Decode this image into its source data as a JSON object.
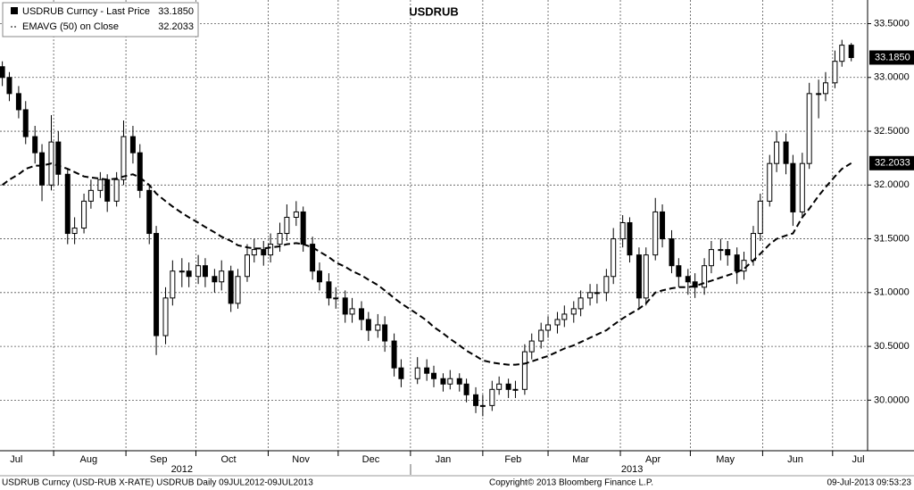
{
  "chart_data": {
    "type": "candlestick",
    "title": "USDRUB",
    "x": [
      "2012-07-10",
      "2012-07-13",
      "2012-07-17",
      "2012-07-20",
      "2012-07-24",
      "2012-07-27",
      "2012-07-31",
      "2012-08-03",
      "2012-08-07",
      "2012-08-10",
      "2012-08-14",
      "2012-08-17",
      "2012-08-21",
      "2012-08-24",
      "2012-08-28",
      "2012-08-31",
      "2012-09-04",
      "2012-09-07",
      "2012-09-11",
      "2012-09-14",
      "2012-09-18",
      "2012-09-21",
      "2012-09-25",
      "2012-09-28",
      "2012-10-02",
      "2012-10-05",
      "2012-10-09",
      "2012-10-12",
      "2012-10-16",
      "2012-10-19",
      "2012-10-23",
      "2012-10-26",
      "2012-10-30",
      "2012-11-02",
      "2012-11-06",
      "2012-11-09",
      "2012-11-13",
      "2012-11-16",
      "2012-11-20",
      "2012-11-23",
      "2012-11-27",
      "2012-11-30",
      "2012-12-04",
      "2012-12-07",
      "2012-12-11",
      "2012-12-14",
      "2012-12-18",
      "2012-12-21",
      "2012-12-25",
      "2012-12-28",
      "2013-01-04",
      "2013-01-08",
      "2013-01-11",
      "2013-01-15",
      "2013-01-18",
      "2013-01-22",
      "2013-01-25",
      "2013-01-29",
      "2013-02-01",
      "2013-02-05",
      "2013-02-08",
      "2013-02-12",
      "2013-02-15",
      "2013-02-19",
      "2013-02-22",
      "2013-02-26",
      "2013-03-01",
      "2013-03-05",
      "2013-03-08",
      "2013-03-12",
      "2013-03-15",
      "2013-03-19",
      "2013-03-22",
      "2013-03-26",
      "2013-03-29",
      "2013-04-02",
      "2013-04-05",
      "2013-04-09",
      "2013-04-12",
      "2013-04-16",
      "2013-04-19",
      "2013-04-23",
      "2013-04-26",
      "2013-04-30",
      "2013-05-03",
      "2013-05-07",
      "2013-05-10",
      "2013-05-14",
      "2013-05-17",
      "2013-05-21",
      "2013-05-24",
      "2013-05-28",
      "2013-05-31",
      "2013-06-04",
      "2013-06-07",
      "2013-06-11",
      "2013-06-14",
      "2013-06-18",
      "2013-06-21",
      "2013-06-25",
      "2013-06-28",
      "2013-07-02",
      "2013-07-05",
      "2013-07-09"
    ],
    "xlim": [
      "2012-07-09",
      "2013-07-16"
    ],
    "xticks": [
      "2012-08-01",
      "2012-09-01",
      "2012-10-01",
      "2012-11-01",
      "2012-12-01",
      "2013-01-01",
      "2013-02-01",
      "2013-03-01",
      "2013-04-01",
      "2013-05-01",
      "2013-06-01",
      "2013-07-01"
    ],
    "month_labels": [
      {
        "value": "2012-07-16",
        "label": "Jul"
      },
      {
        "value": "2012-08-16",
        "label": "Aug"
      },
      {
        "value": "2012-09-15",
        "label": "Sep"
      },
      {
        "value": "2012-10-15",
        "label": "Oct"
      },
      {
        "value": "2012-11-15",
        "label": "Nov"
      },
      {
        "value": "2012-12-15",
        "label": "Dec"
      },
      {
        "value": "2013-01-15",
        "label": "Jan"
      },
      {
        "value": "2013-02-14",
        "label": "Feb"
      },
      {
        "value": "2013-03-15",
        "label": "Mar"
      },
      {
        "value": "2013-04-15",
        "label": "Apr"
      },
      {
        "value": "2013-05-16",
        "label": "May"
      },
      {
        "value": "2013-06-15",
        "label": "Jun"
      },
      {
        "value": "2013-07-12",
        "label": "Jul"
      }
    ],
    "year_labels": [
      {
        "value": "2012-09-25",
        "label": "2012"
      },
      {
        "value": "2013-04-06",
        "label": "2013"
      }
    ],
    "ylim": [
      29.53,
      33.72
    ],
    "yticks": [
      {
        "value": 30,
        "label": "30.0000"
      },
      {
        "value": 30.5,
        "label": "30.5000"
      },
      {
        "value": 31,
        "label": "31.0000"
      },
      {
        "value": 31.5,
        "label": "31.5000"
      },
      {
        "value": 32,
        "label": "32.0000"
      },
      {
        "value": 32.5,
        "label": "32.5000"
      },
      {
        "value": 33,
        "label": "33.0000"
      },
      {
        "value": 33.5,
        "label": "33.5000"
      }
    ],
    "grid": true,
    "series": [
      {
        "name": "USDRUB Curncy - Last Price",
        "type": "candlestick",
        "color": "#000000",
        "last_label": "33.1850",
        "open": [
          33.1,
          33.0,
          32.85,
          32.7,
          32.45,
          32.3,
          32.0,
          32.4,
          32.1,
          31.55,
          31.6,
          31.85,
          31.95,
          32.05,
          31.85,
          32.05,
          32.45,
          32.3,
          31.95,
          31.55,
          30.6,
          30.95,
          31.2,
          31.2,
          31.15,
          31.25,
          31.15,
          31.1,
          31.2,
          30.9,
          31.15,
          31.35,
          31.4,
          31.35,
          31.45,
          31.55,
          31.7,
          31.75,
          31.45,
          31.2,
          31.1,
          30.95,
          30.95,
          30.8,
          30.85,
          30.75,
          30.65,
          30.7,
          30.55,
          30.3,
          30.2,
          30.3,
          30.25,
          30.2,
          30.15,
          30.2,
          30.15,
          30.05,
          29.95,
          29.95,
          30.1,
          30.15,
          30.1,
          30.1,
          30.45,
          30.55,
          30.65,
          30.7,
          30.75,
          30.8,
          30.85,
          30.95,
          31.0,
          31.0,
          31.15,
          31.5,
          31.65,
          31.35,
          30.95,
          31.35,
          31.75,
          31.5,
          31.25,
          31.15,
          31.1,
          31.05,
          31.25,
          31.4,
          31.4,
          31.35,
          31.2,
          31.3,
          31.55,
          31.85,
          32.2,
          32.4,
          32.2,
          31.75,
          32.2,
          32.85,
          32.85,
          32.95,
          33.15,
          33.3
        ],
        "high": [
          33.15,
          33.05,
          32.92,
          32.78,
          32.55,
          32.38,
          32.65,
          32.5,
          32.15,
          31.7,
          31.92,
          32.05,
          32.12,
          32.1,
          32.12,
          32.6,
          32.55,
          32.38,
          32.0,
          31.62,
          31.05,
          31.3,
          31.32,
          31.28,
          31.35,
          31.32,
          31.22,
          31.3,
          31.25,
          31.22,
          31.45,
          31.5,
          31.48,
          31.55,
          31.65,
          31.82,
          31.85,
          31.8,
          31.52,
          31.28,
          31.18,
          31.05,
          31.02,
          30.95,
          30.92,
          30.82,
          30.8,
          30.78,
          30.62,
          30.38,
          30.4,
          30.38,
          30.32,
          30.25,
          30.28,
          30.25,
          30.2,
          30.12,
          30.05,
          30.18,
          30.22,
          30.2,
          30.18,
          30.52,
          30.62,
          30.72,
          30.78,
          30.82,
          30.88,
          30.92,
          31.02,
          31.08,
          31.08,
          31.22,
          31.6,
          31.72,
          31.7,
          31.42,
          31.42,
          31.88,
          31.82,
          31.58,
          31.32,
          31.22,
          31.18,
          31.32,
          31.48,
          31.5,
          31.48,
          31.42,
          31.38,
          31.62,
          31.92,
          32.28,
          32.5,
          32.48,
          32.28,
          32.3,
          32.95,
          32.98,
          33.05,
          33.25,
          33.35,
          33.32
        ],
        "low": [
          32.92,
          32.78,
          32.62,
          32.38,
          32.2,
          31.85,
          31.95,
          32.0,
          31.45,
          31.45,
          31.55,
          31.78,
          31.88,
          31.75,
          31.8,
          32.0,
          32.2,
          31.88,
          31.45,
          30.42,
          30.52,
          30.88,
          31.05,
          31.05,
          31.08,
          31.05,
          31.0,
          31.02,
          30.82,
          30.85,
          31.1,
          31.28,
          31.25,
          31.28,
          31.38,
          31.48,
          31.62,
          31.38,
          31.12,
          31.02,
          30.88,
          30.85,
          30.72,
          30.72,
          30.65,
          30.55,
          30.58,
          30.45,
          30.22,
          30.12,
          30.15,
          30.18,
          30.12,
          30.08,
          30.1,
          30.08,
          29.98,
          29.88,
          29.85,
          29.9,
          30.05,
          30.02,
          30.02,
          30.05,
          30.38,
          30.48,
          30.58,
          30.62,
          30.68,
          30.72,
          30.78,
          30.88,
          30.9,
          30.92,
          31.08,
          31.42,
          31.28,
          30.85,
          30.88,
          31.3,
          31.42,
          31.18,
          31.05,
          30.98,
          30.95,
          30.98,
          31.18,
          31.3,
          31.25,
          31.08,
          31.12,
          31.25,
          31.48,
          31.8,
          32.12,
          32.1,
          31.62,
          31.7,
          32.15,
          32.62,
          32.78,
          32.9,
          33.1,
          33.15
        ],
        "close": [
          33.0,
          32.85,
          32.7,
          32.45,
          32.3,
          32.0,
          32.4,
          32.1,
          31.55,
          31.6,
          31.85,
          31.95,
          32.05,
          31.85,
          32.05,
          32.45,
          32.3,
          31.95,
          31.55,
          30.6,
          30.95,
          31.2,
          31.2,
          31.15,
          31.25,
          31.15,
          31.1,
          31.2,
          30.9,
          31.15,
          31.35,
          31.4,
          31.35,
          31.45,
          31.55,
          31.7,
          31.75,
          31.45,
          31.2,
          31.1,
          30.95,
          30.95,
          30.8,
          30.85,
          30.75,
          30.65,
          30.7,
          30.55,
          30.3,
          30.2,
          30.3,
          30.25,
          30.2,
          30.15,
          30.2,
          30.15,
          30.05,
          29.95,
          29.95,
          30.1,
          30.15,
          30.1,
          30.1,
          30.45,
          30.55,
          30.65,
          30.7,
          30.75,
          30.8,
          30.85,
          30.95,
          31.0,
          31.0,
          31.15,
          31.5,
          31.65,
          31.35,
          30.95,
          31.35,
          31.75,
          31.5,
          31.25,
          31.15,
          31.1,
          31.05,
          31.25,
          31.4,
          31.4,
          31.35,
          31.2,
          31.3,
          31.55,
          31.85,
          32.2,
          32.4,
          32.2,
          31.75,
          32.2,
          32.85,
          32.85,
          32.95,
          33.15,
          33.3,
          33.185
        ]
      },
      {
        "name": "EMAVG (50) on Close",
        "type": "line",
        "color": "#000000",
        "dash": true,
        "last_label": "32.2033",
        "values": [
          32.0,
          32.05,
          32.1,
          32.15,
          32.18,
          32.18,
          32.2,
          32.18,
          32.15,
          32.12,
          32.08,
          32.07,
          32.06,
          32.05,
          32.06,
          32.08,
          32.1,
          32.07,
          32.0,
          31.92,
          31.85,
          31.8,
          31.74,
          31.7,
          31.65,
          31.61,
          31.56,
          31.52,
          31.48,
          31.44,
          31.42,
          31.41,
          31.41,
          31.42,
          31.43,
          31.45,
          31.46,
          31.45,
          31.42,
          31.38,
          31.33,
          31.28,
          31.24,
          31.2,
          31.16,
          31.12,
          31.07,
          31.02,
          30.95,
          30.9,
          30.8,
          30.74,
          30.68,
          30.62,
          30.57,
          30.51,
          30.46,
          30.41,
          30.37,
          30.35,
          30.34,
          30.33,
          30.33,
          30.34,
          30.36,
          30.39,
          30.41,
          30.45,
          30.48,
          30.51,
          30.54,
          30.58,
          30.61,
          30.65,
          30.7,
          30.76,
          30.8,
          30.85,
          30.9,
          31.0,
          31.02,
          31.04,
          31.05,
          31.05,
          31.06,
          31.09,
          31.11,
          31.14,
          31.16,
          31.19,
          31.22,
          31.3,
          31.36,
          31.45,
          31.5,
          31.53,
          31.55,
          31.7,
          31.78,
          31.9,
          31.98,
          32.08,
          32.15,
          32.2033
        ]
      }
    ]
  },
  "footer": {
    "left": "USDRUB Curncy (USD-RUB X-RATE) USDRUB  Daily 09JUL2012-09JUL2013",
    "center": "Copyright© 2013 Bloomberg Finance L.P.",
    "right": "09-Jul-2013 09:53:23"
  }
}
